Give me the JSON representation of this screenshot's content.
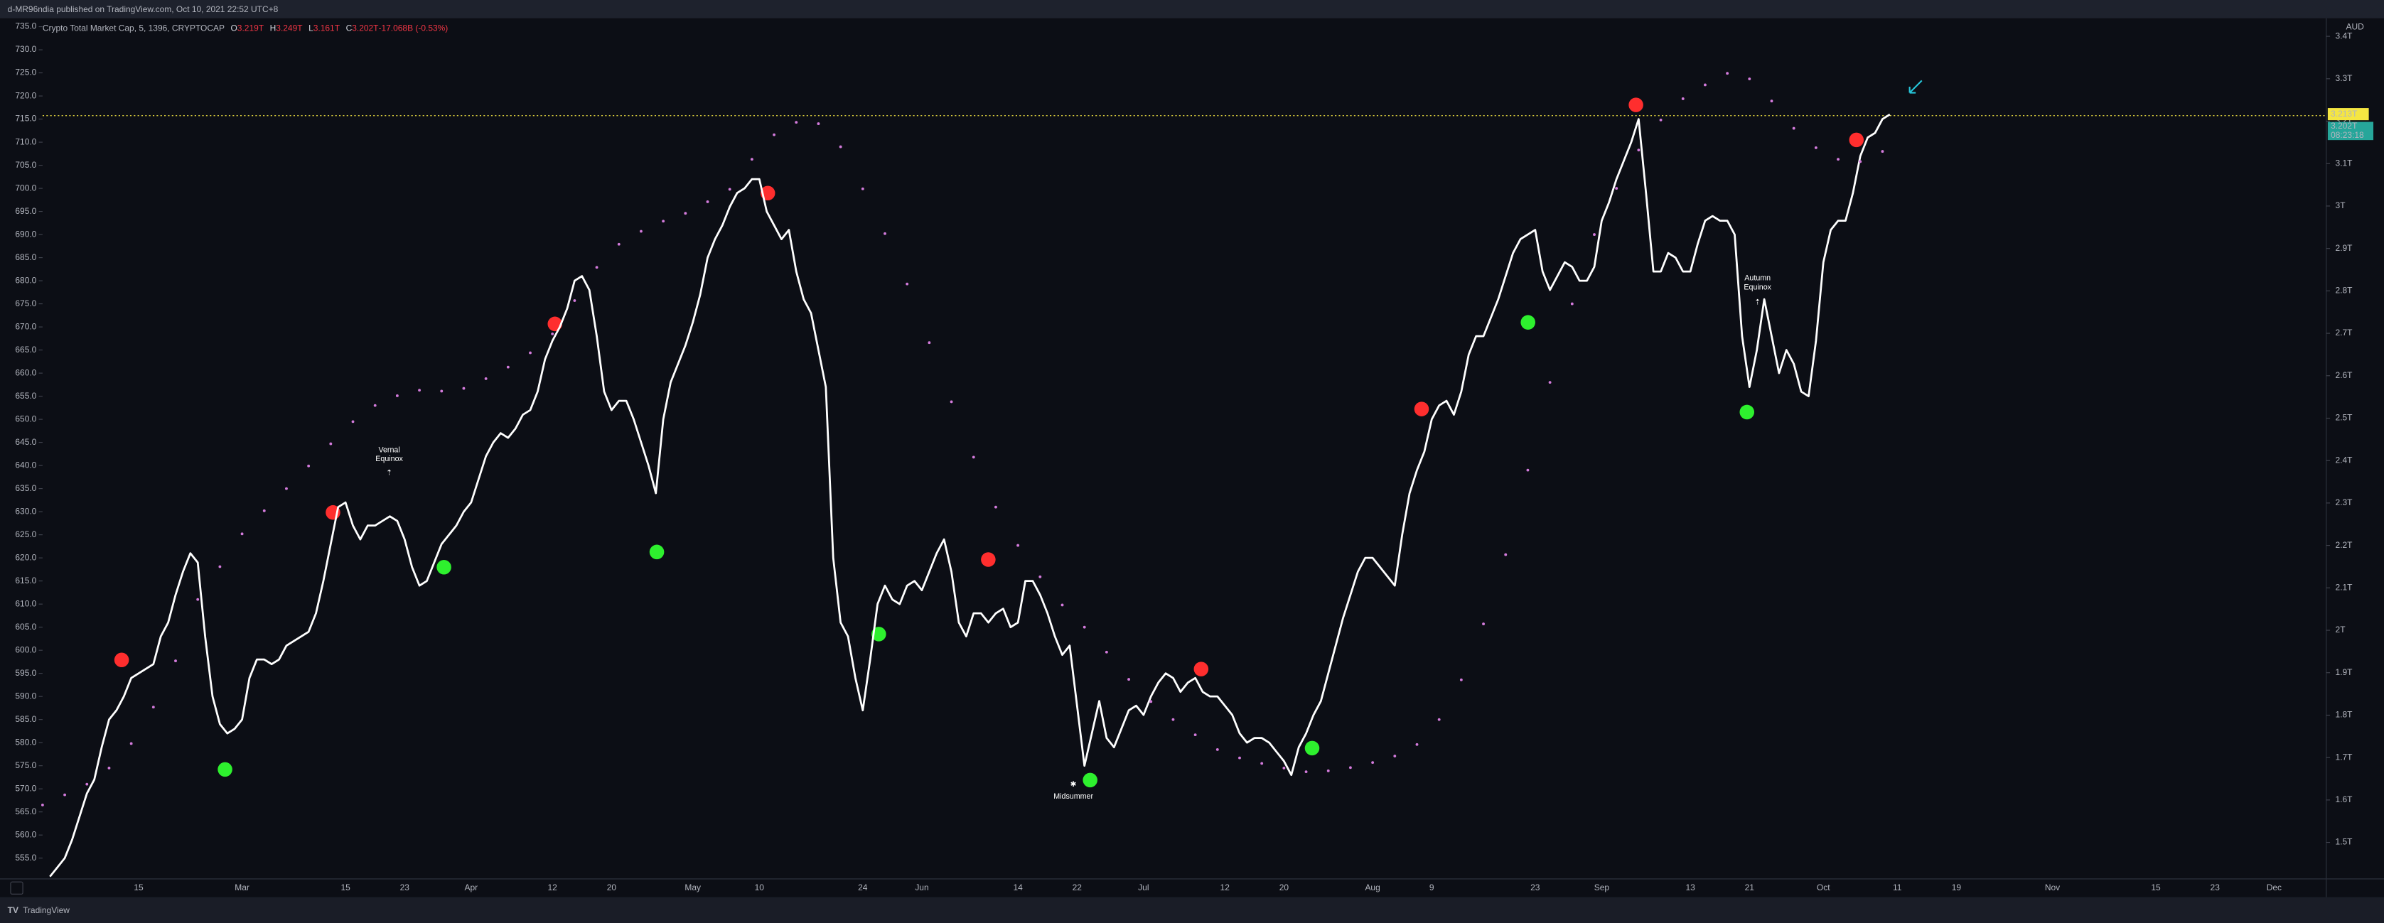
{
  "header": {
    "text": "d-MR96ndia published on TradingView.com, Oct 10, 2021 22:52 UTC+8"
  },
  "footer": {
    "text": "TradingView"
  },
  "chart_data": {
    "type": "line",
    "title": "Crypto Total Market Cap, 5, 1396, CRYPTOCAP",
    "legend_values": [
      {
        "k": "O",
        "v": "3.219T"
      },
      {
        "k": "H",
        "v": "3.249T"
      },
      {
        "k": "L",
        "v": "3.161T"
      },
      {
        "k": "C",
        "v": "3.202T"
      },
      {
        "k": "",
        "v": "-17.068B (-0.53%)"
      }
    ],
    "currency": "AUD",
    "grid": false,
    "categories": [
      null,
      null,
      null,
      null,
      null,
      null,
      null,
      null,
      null,
      null,
      null,
      null,
      null,
      "15",
      null,
      null,
      null,
      null,
      null,
      null,
      null,
      null,
      null,
      null,
      null,
      null,
      null,
      "Mar",
      null,
      null,
      null,
      null,
      null,
      null,
      null,
      null,
      null,
      null,
      null,
      null,
      null,
      "15",
      null,
      null,
      null,
      null,
      null,
      null,
      null,
      "23",
      null,
      null,
      null,
      null,
      null,
      null,
      null,
      null,
      "Apr",
      null,
      null,
      null,
      null,
      null,
      null,
      null,
      null,
      null,
      null,
      "12",
      null,
      null,
      null,
      null,
      null,
      null,
      null,
      "20",
      null,
      null,
      null,
      null,
      null,
      null,
      null,
      null,
      null,
      null,
      "May",
      null,
      null,
      null,
      null,
      null,
      null,
      null,
      null,
      "10",
      null,
      null,
      null,
      null,
      null,
      null,
      null,
      null,
      null,
      null,
      null,
      null,
      null,
      "24",
      null,
      null,
      null,
      null,
      null,
      null,
      null,
      "Jun",
      null,
      null,
      null,
      null,
      null,
      null,
      null,
      null,
      null,
      null,
      null,
      null,
      "14",
      null,
      null,
      null,
      null,
      null,
      null,
      null,
      "22",
      null,
      null,
      null,
      null,
      null,
      null,
      null,
      null,
      "Jul",
      null,
      null,
      null,
      null,
      null,
      null,
      null,
      null,
      null,
      null,
      "12",
      null,
      null,
      null,
      null,
      null,
      null,
      null,
      "20",
      null,
      null,
      null,
      null,
      null,
      null,
      null,
      null,
      null,
      null,
      null,
      "Aug",
      null,
      null,
      null,
      null,
      null,
      null,
      null,
      "9",
      null,
      null,
      null,
      null,
      null,
      null,
      null,
      null,
      null,
      null,
      null,
      null,
      null,
      "23",
      null,
      null,
      null,
      null,
      null,
      null,
      null,
      null,
      "Sep",
      null,
      null,
      null,
      null,
      null,
      null,
      null,
      null,
      null,
      null,
      null,
      "13",
      null,
      null,
      null,
      null,
      null,
      null,
      null,
      "21",
      null,
      null,
      null,
      null,
      null,
      null,
      null,
      null,
      null,
      "Oct",
      null,
      null,
      null,
      null,
      null,
      null,
      null,
      null,
      null,
      "11",
      null,
      null,
      null,
      null,
      null,
      null,
      null,
      "19",
      null,
      null,
      null,
      null,
      null,
      null,
      null,
      null,
      null,
      null,
      null,
      null,
      "Nov",
      null,
      null,
      null,
      null,
      null,
      null,
      null,
      null,
      null,
      null,
      null,
      null,
      null,
      "15",
      null,
      null,
      null,
      null,
      null,
      null,
      null,
      "23",
      null,
      null,
      null,
      null,
      null,
      null,
      null,
      "Dec"
    ],
    "series": [
      {
        "color": "#ffffff",
        "values": [
          null,
          551,
          553,
          555,
          559,
          564,
          569,
          572,
          579,
          585,
          587,
          590,
          594,
          595,
          596,
          597,
          603,
          606,
          612,
          617,
          621,
          619,
          603,
          590,
          584,
          582,
          583,
          585,
          594,
          598,
          598,
          597,
          598,
          601,
          602,
          603,
          604,
          608,
          615,
          623,
          631,
          632,
          627,
          624,
          627,
          627,
          628,
          629,
          628,
          624,
          618,
          614,
          615,
          619,
          623,
          625,
          627,
          630,
          632,
          637,
          642,
          645,
          647,
          646,
          648,
          651,
          652,
          656,
          663,
          667,
          670,
          674,
          680,
          681,
          678,
          668,
          656,
          652,
          654,
          654,
          650,
          645,
          640,
          634,
          650,
          658,
          662,
          666,
          671,
          677,
          685,
          689,
          692,
          696,
          699,
          700,
          702,
          702,
          695,
          692,
          689,
          691,
          682,
          676,
          673,
          665,
          657,
          620,
          606,
          603,
          594,
          587,
          598,
          610,
          614,
          611,
          610,
          614,
          615,
          613,
          617,
          621,
          624,
          617,
          606,
          603,
          608,
          608,
          606,
          608,
          609,
          605,
          606,
          615,
          615,
          612,
          608,
          603,
          599,
          601,
          588,
          575,
          582,
          589,
          581,
          579,
          583,
          587,
          588,
          586,
          590,
          593,
          595,
          594,
          591,
          593,
          594,
          591,
          590,
          590,
          588,
          586,
          582,
          580,
          581,
          581,
          580,
          578,
          576,
          573,
          579,
          582,
          586,
          589,
          595,
          601,
          607,
          612,
          617,
          620,
          620,
          618,
          616,
          614,
          625,
          634,
          639,
          643,
          650,
          653,
          654,
          651,
          656,
          664,
          668,
          668,
          672,
          676,
          681,
          686,
          689,
          690,
          691,
          682,
          678,
          681,
          684,
          683,
          680,
          680,
          683,
          693,
          697,
          702,
          706,
          710,
          715,
          699,
          682,
          682,
          686,
          685,
          682,
          682,
          688,
          693,
          694,
          693,
          693,
          690,
          668,
          657,
          665,
          676,
          668,
          660,
          665,
          662,
          656,
          655,
          667,
          684,
          691,
          693,
          693,
          699,
          707,
          711,
          712,
          715,
          716,
          null,
          null,
          null,
          null,
          null,
          null,
          null,
          null,
          null,
          null,
          null,
          null,
          null,
          null,
          null,
          null,
          null,
          null,
          null,
          null,
          null,
          null,
          null,
          null,
          null,
          null,
          null,
          null,
          null,
          null,
          null,
          null,
          null,
          null,
          null,
          null,
          null,
          null,
          null,
          null,
          null,
          null,
          null,
          null,
          null,
          null,
          null,
          null,
          null,
          null,
          null,
          null
        ]
      },
      {
        "color": "#d47bdc",
        "style": "dotted",
        "values": [
          566.5,
          null,
          null,
          568.7,
          null,
          null,
          571,
          null,
          null,
          574.5,
          null,
          null,
          579.8,
          null,
          null,
          587.7,
          null,
          null,
          597.7,
          null,
          null,
          611,
          null,
          null,
          618.1,
          null,
          null,
          625.2,
          null,
          null,
          630.2,
          null,
          null,
          635,
          null,
          null,
          639.9,
          null,
          null,
          644.7,
          null,
          null,
          649.5,
          null,
          null,
          653,
          null,
          null,
          655.1,
          null,
          null,
          656.3,
          null,
          null,
          656.1,
          null,
          null,
          656.7,
          null,
          null,
          658.8,
          null,
          null,
          661.3,
          null,
          null,
          664.4,
          null,
          null,
          668.5,
          null,
          null,
          675.7,
          null,
          null,
          682.9,
          null,
          null,
          687.9,
          null,
          null,
          690.7,
          null,
          null,
          692.9,
          null,
          null,
          694.6,
          null,
          null,
          697.1,
          null,
          null,
          699.8,
          null,
          null,
          706.3,
          null,
          null,
          711.6,
          null,
          null,
          714.3,
          null,
          null,
          714,
          null,
          null,
          709,
          null,
          null,
          699.9,
          null,
          null,
          690.2,
          null,
          null,
          679.3,
          null,
          null,
          666.6,
          null,
          null,
          653.8,
          null,
          null,
          641.8,
          null,
          null,
          631,
          null,
          null,
          622.7,
          null,
          null,
          615.9,
          null,
          null,
          609.8,
          null,
          null,
          605,
          null,
          null,
          599.6,
          null,
          null,
          593.7,
          null,
          null,
          588.9,
          null,
          null,
          585,
          null,
          null,
          581.7,
          null,
          null,
          578.5,
          null,
          null,
          576.7,
          null,
          null,
          575.5,
          null,
          null,
          574.5,
          null,
          null,
          573.7,
          null,
          null,
          573.9,
          null,
          null,
          574.6,
          null,
          null,
          575.7,
          null,
          null,
          577.1,
          null,
          null,
          579.6,
          null,
          null,
          585,
          null,
          null,
          593.6,
          null,
          null,
          605.7,
          null,
          null,
          620.7,
          null,
          null,
          639,
          null,
          null,
          658,
          null,
          null,
          675,
          null,
          null,
          690,
          null,
          null,
          700,
          null,
          null,
          708.3,
          null,
          null,
          714.8,
          null,
          null,
          719.4,
          null,
          null,
          722.4,
          null,
          null,
          724.9,
          null,
          null,
          723.7,
          null,
          null,
          718.9,
          null,
          null,
          713,
          null,
          null,
          708.8,
          null,
          null,
          706.3,
          null,
          null,
          705.8,
          null,
          null,
          708,
          null,
          null,
          null,
          null,
          null,
          null,
          null,
          null,
          null,
          null,
          null,
          null,
          null,
          null,
          null,
          null,
          null,
          null,
          null,
          null,
          null,
          null,
          null,
          null,
          null,
          null,
          null,
          null,
          null,
          null,
          null,
          null,
          null,
          null,
          null,
          null,
          null,
          null,
          null,
          null,
          null,
          null,
          null,
          null,
          null,
          null,
          null,
          null,
          null,
          null,
          null,
          null,
          null
        ]
      }
    ],
    "ylim": [
      550.5,
      736.5
    ],
    "yticks": [
      {
        "value": 555,
        "label": "555.0"
      },
      {
        "value": 560,
        "label": "560.0"
      },
      {
        "value": 565,
        "label": "565.0"
      },
      {
        "value": 570,
        "label": "570.0"
      },
      {
        "value": 575,
        "label": "575.0"
      },
      {
        "value": 580,
        "label": "580.0"
      },
      {
        "value": 585,
        "label": "585.0"
      },
      {
        "value": 590,
        "label": "590.0"
      },
      {
        "value": 595,
        "label": "595.0"
      },
      {
        "value": 600,
        "label": "600.0"
      },
      {
        "value": 605,
        "label": "605.0"
      },
      {
        "value": 610,
        "label": "610.0"
      },
      {
        "value": 615,
        "label": "615.0"
      },
      {
        "value": 620,
        "label": "620.0"
      },
      {
        "value": 625,
        "label": "625.0"
      },
      {
        "value": 630,
        "label": "630.0"
      },
      {
        "value": 635,
        "label": "635.0"
      },
      {
        "value": 640,
        "label": "640.0"
      },
      {
        "value": 645,
        "label": "645.0"
      },
      {
        "value": 650,
        "label": "650.0"
      },
      {
        "value": 655,
        "label": "655.0"
      },
      {
        "value": 660,
        "label": "660.0"
      },
      {
        "value": 665,
        "label": "665.0"
      },
      {
        "value": 670,
        "label": "670.0"
      },
      {
        "value": 675,
        "label": "675.0"
      },
      {
        "value": 680,
        "label": "680.0"
      },
      {
        "value": 685,
        "label": "685.0"
      },
      {
        "value": 690,
        "label": "690.0"
      },
      {
        "value": 695,
        "label": "695.0"
      },
      {
        "value": 700,
        "label": "700.0"
      },
      {
        "value": 705,
        "label": "705.0"
      },
      {
        "value": 710,
        "label": "710.0"
      },
      {
        "value": 715,
        "label": "715.0"
      },
      {
        "value": 720,
        "label": "720.0"
      },
      {
        "value": 725,
        "label": "725.0"
      },
      {
        "value": 730,
        "label": "730.0"
      },
      {
        "value": 735,
        "label": "735.0"
      }
    ],
    "y2lim": [
      1.414,
      3.439
    ],
    "y2ticks": [
      {
        "value": 1.5,
        "label": "1.5T"
      },
      {
        "value": 1.6,
        "label": "1.6T"
      },
      {
        "value": 1.7,
        "label": "1.7T"
      },
      {
        "value": 1.8,
        "label": "1.8T"
      },
      {
        "value": 1.9,
        "label": "1.9T"
      },
      {
        "value": 2,
        "label": "2T"
      },
      {
        "value": 2.1,
        "label": "2.1T"
      },
      {
        "value": 2.2,
        "label": "2.2T"
      },
      {
        "value": 2.3,
        "label": "2.3T"
      },
      {
        "value": 2.4,
        "label": "2.4T"
      },
      {
        "value": 2.5,
        "label": "2.5T"
      },
      {
        "value": 2.6,
        "label": "2.6T"
      },
      {
        "value": 2.7,
        "label": "2.7T"
      },
      {
        "value": 2.8,
        "label": "2.8T"
      },
      {
        "value": 2.9,
        "label": "2.9T"
      },
      {
        "value": 3,
        "label": "3T"
      },
      {
        "value": 3.1,
        "label": "3.1T"
      },
      {
        "value": 3.2,
        "label": "3.2T"
      },
      {
        "value": 3.3,
        "label": "3.3T"
      },
      {
        "value": 3.4,
        "label": "3.4T"
      }
    ],
    "price_line": {
      "value": 3.213,
      "label": "3.213T",
      "color": "#f5e642"
    },
    "last_price": {
      "value": 3.202,
      "label": "3.202T",
      "countdown": "08:23:18",
      "color": "#26a69a"
    },
    "annotations": [
      {
        "lines": [
          "Vernal",
          "Equinox"
        ]
      },
      {
        "lines": [
          "Midsummer"
        ]
      },
      {
        "lines": [
          "Autumn",
          "Equinox"
        ]
      }
    ]
  }
}
